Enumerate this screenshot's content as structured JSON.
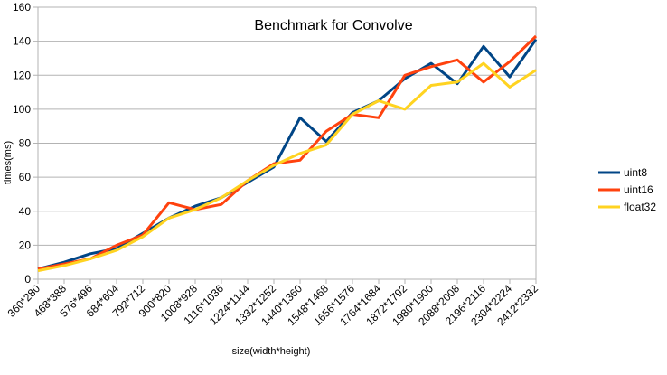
{
  "chart_data": {
    "type": "line",
    "title": "Benchmark for Convolve",
    "xlabel": "size(width*height)",
    "ylabel": "times(ms)",
    "ylim": [
      0,
      160
    ],
    "yticks": [
      0,
      20,
      40,
      60,
      80,
      100,
      120,
      140,
      160
    ],
    "grid": "horizontal",
    "legend": "right",
    "categories": [
      "360*280",
      "468*388",
      "576*496",
      "684*604",
      "792*712",
      "900*820",
      "1008*928",
      "1116*1036",
      "1224*1144",
      "1332*1252",
      "1440*1360",
      "1548*1468",
      "1656*1576",
      "1764*1684",
      "1872*1792",
      "1980*1900",
      "2088*2008",
      "2196*2116",
      "2304*2224",
      "2412*2332"
    ],
    "series": [
      {
        "name": "uint8",
        "color": "#004586",
        "values": [
          6,
          10,
          15,
          18,
          27,
          36,
          43,
          48,
          57,
          66,
          95,
          81,
          98,
          105,
          118,
          127,
          115,
          137,
          119,
          141
        ]
      },
      {
        "name": "uint16",
        "color": "#ff420e",
        "values": [
          6,
          9,
          12,
          20,
          26,
          45,
          41,
          44,
          58,
          68,
          70,
          87,
          97,
          95,
          120,
          125,
          129,
          116,
          128,
          143
        ]
      },
      {
        "name": "float32",
        "color": "#ffd320",
        "values": [
          5,
          8,
          12,
          17,
          25,
          36,
          41,
          48,
          58,
          67,
          74,
          79,
          97,
          105,
          100,
          114,
          116,
          127,
          113,
          123
        ]
      }
    ]
  }
}
